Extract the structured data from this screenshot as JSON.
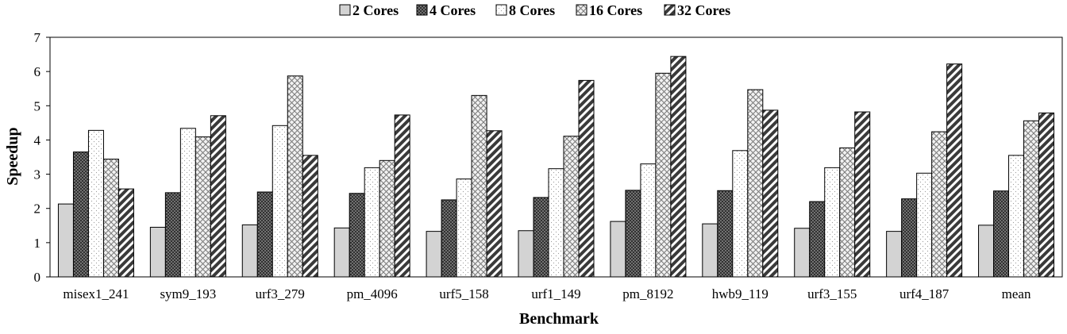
{
  "chart_data": {
    "type": "bar",
    "title": "",
    "xlabel": "Benchmark",
    "ylabel": "Speedup",
    "ylim": [
      0,
      7
    ],
    "yticks": [
      0,
      1,
      2,
      3,
      4,
      5,
      6,
      7
    ],
    "grid": false,
    "legend_position": "top-center",
    "categories": [
      "misex1_241",
      "sym9_193",
      "urf3_279",
      "pm_4096",
      "urf5_158",
      "urf1_149",
      "pm_8192",
      "hwb9_119",
      "urf3_155",
      "urf4_187",
      "mean"
    ],
    "series": [
      {
        "name": "2 Cores",
        "pattern": "solid-light-gray",
        "color": "#d3d3d3",
        "values": [
          2.13,
          1.45,
          1.52,
          1.43,
          1.33,
          1.35,
          1.62,
          1.55,
          1.42,
          1.33,
          1.51
        ]
      },
      {
        "name": "4 Cores",
        "pattern": "crosshatch-dark",
        "color": "#555555",
        "values": [
          3.65,
          2.46,
          2.48,
          2.44,
          2.25,
          2.32,
          2.53,
          2.52,
          2.2,
          2.28,
          2.51
        ]
      },
      {
        "name": "8 Cores",
        "pattern": "dotted-white",
        "color": "#ffffff",
        "values": [
          4.28,
          4.34,
          4.42,
          3.19,
          2.86,
          3.16,
          3.3,
          3.69,
          3.19,
          3.03,
          3.55
        ]
      },
      {
        "name": "16 Cores",
        "pattern": "diamond-light",
        "color": "#e0e0e0",
        "values": [
          3.44,
          4.09,
          5.87,
          3.4,
          5.3,
          4.11,
          5.95,
          5.47,
          3.77,
          4.24,
          4.56
        ]
      },
      {
        "name": "32 Cores",
        "pattern": "diagonal-stripes",
        "color": "#444444",
        "values": [
          2.57,
          4.71,
          3.55,
          4.73,
          4.27,
          5.74,
          6.44,
          4.87,
          4.82,
          6.22,
          4.79
        ]
      }
    ]
  }
}
